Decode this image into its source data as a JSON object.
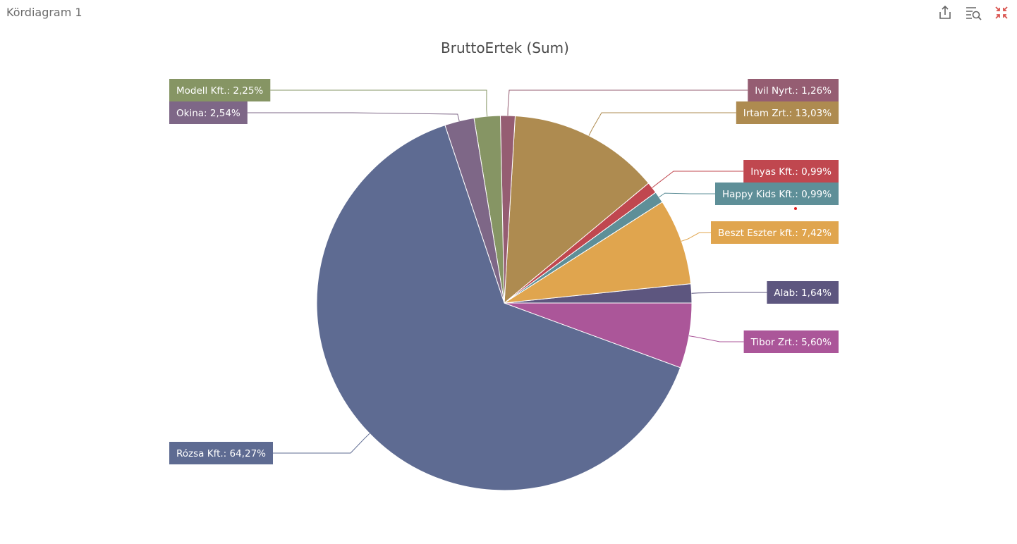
{
  "panel": {
    "title": "Kördiagram 1",
    "icons": [
      "export-icon",
      "inspect-icon",
      "collapse-icon"
    ],
    "icon_color": "#666666",
    "collapse_icon_color": "#d9534f"
  },
  "chart_data": {
    "type": "pie",
    "title": "BruttoErtek (Sum)",
    "start_direction": "right, counter-clockwise",
    "slices": [
      {
        "name": "Alab",
        "value": 1.64,
        "label": "Alab: 1,64%",
        "color": "#5d567f"
      },
      {
        "name": "Beszt Eszter kft.",
        "value": 7.42,
        "label": "Beszt Eszter kft.: 7,42%",
        "color": "#e0a54e"
      },
      {
        "name": "Happy Kids Kft.",
        "value": 0.99,
        "label": "Happy Kids Kft.: 0,99%",
        "color": "#5e8f98"
      },
      {
        "name": "Inyas Kft.",
        "value": 0.99,
        "label": "Inyas Kft.: 0,99%",
        "color": "#c0474f"
      },
      {
        "name": "Irtam Zrt.",
        "value": 13.03,
        "label": "Irtam Zrt.: 13,03%",
        "color": "#ae8b50"
      },
      {
        "name": "Ivil Nyrt.",
        "value": 1.26,
        "label": "Ivil Nyrt.: 1,26%",
        "color": "#955d72"
      },
      {
        "name": "Modell Kft.",
        "value": 2.25,
        "label": "Modell Kft.: 2,25%",
        "color": "#869564"
      },
      {
        "name": "Okina",
        "value": 2.54,
        "label": "Okina: 2,54%",
        "color": "#7e6787"
      },
      {
        "name": "Rózsa Kft.",
        "value": 64.27,
        "label": "Rózsa Kft.: 64,27%",
        "color": "#5e6b92"
      },
      {
        "name": "Tibor Zrt.",
        "value": 5.6,
        "label": "Tibor Zrt.: 5,60%",
        "color": "#ab5699"
      }
    ]
  }
}
